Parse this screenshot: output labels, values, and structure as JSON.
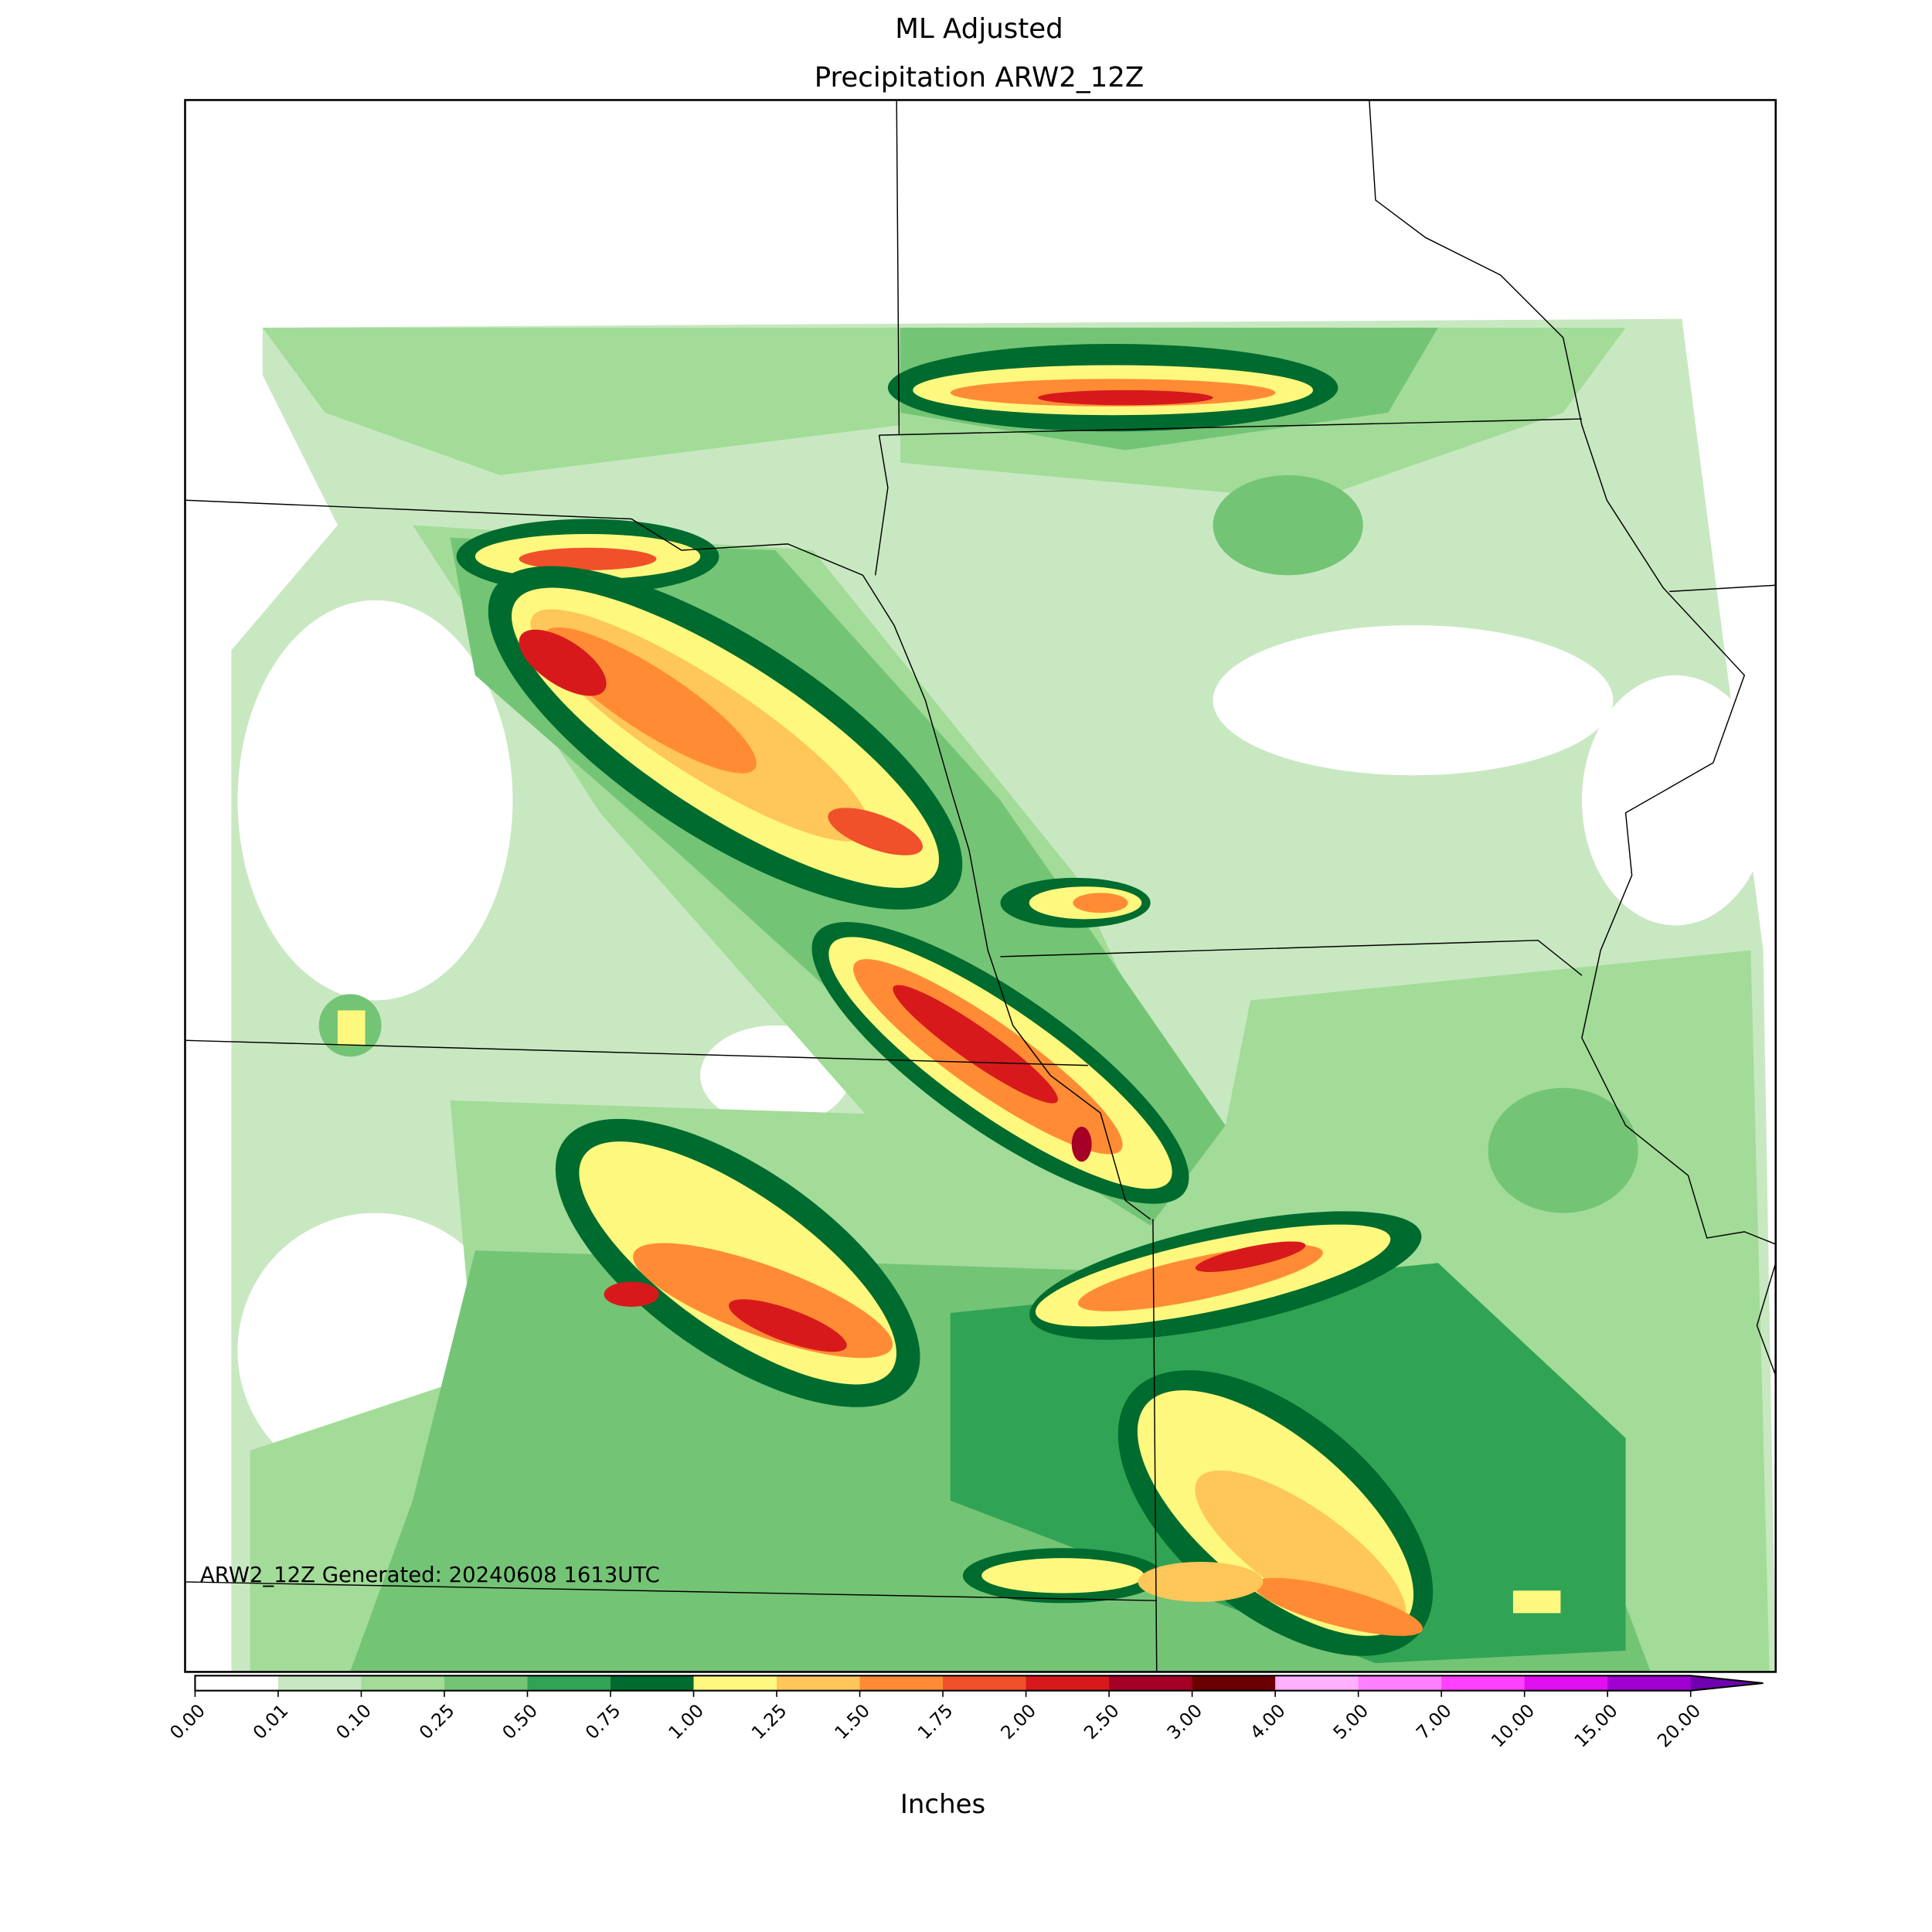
{
  "title_lines": [
    "ML Adjusted",
    "Precipitation ARW2_12Z"
  ],
  "annotation": "ARW2_12Z Generated: 20240608 1613UTC",
  "colorbar": {
    "label": "Inches",
    "ticks": [
      {
        "value": 0,
        "label": "0.00"
      },
      {
        "value": 0.01,
        "label": "0.01"
      },
      {
        "value": 0.1,
        "label": "0.10"
      },
      {
        "value": 0.25,
        "label": "0.25"
      },
      {
        "value": 0.5,
        "label": "0.50"
      },
      {
        "value": 0.75,
        "label": "0.75"
      },
      {
        "value": 1,
        "label": "1.00"
      },
      {
        "value": 1.25,
        "label": "1.25"
      },
      {
        "value": 1.5,
        "label": "1.50"
      },
      {
        "value": 1.75,
        "label": "1.75"
      },
      {
        "value": 2,
        "label": "2.00"
      },
      {
        "value": 2.5,
        "label": "2.50"
      },
      {
        "value": 3,
        "label": "3.00"
      },
      {
        "value": 4,
        "label": "4.00"
      },
      {
        "value": 5,
        "label": "5.00"
      },
      {
        "value": 7,
        "label": "7.00"
      },
      {
        "value": 10,
        "label": "10.00"
      },
      {
        "value": 15,
        "label": "15.00"
      },
      {
        "value": 20,
        "label": "20.00"
      }
    ],
    "colors": [
      "#ffffff",
      "#c8e8c1",
      "#a2dc98",
      "#74c476",
      "#31a354",
      "#006b2e",
      "#fff87f",
      "#ffc65a",
      "#ff8c34",
      "#f0502a",
      "#d7191c",
      "#a50026",
      "#6a0000",
      "#ffb0ff",
      "#ff80ff",
      "#ff40ff",
      "#e010f0",
      "#a000d0"
    ],
    "extend_color": "#7000b0"
  }
}
